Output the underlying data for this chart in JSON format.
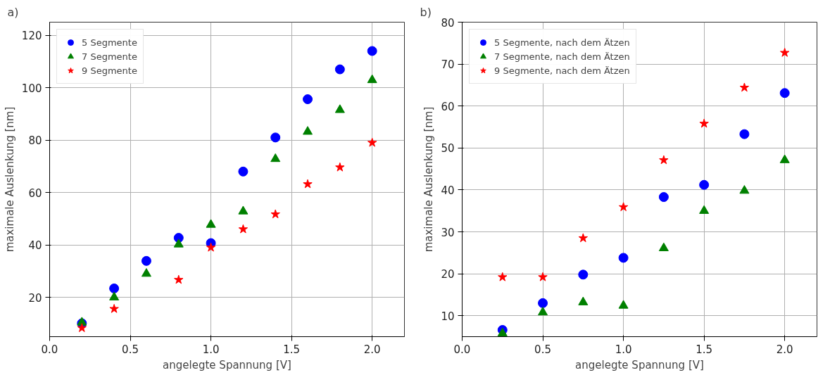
{
  "chart_data": [
    {
      "type": "scatter",
      "title": "a)",
      "xlabel": "angelegte Spannung [V]",
      "ylabel": "maximale Auslenkung [nm]",
      "xlim": [
        0,
        2.2
      ],
      "ylim": [
        5,
        125
      ],
      "xticks": [
        {
          "value": 0,
          "label": "0.0"
        },
        {
          "value": 0.5,
          "label": "0.5"
        },
        {
          "value": 1,
          "label": "1.0"
        },
        {
          "value": 1.5,
          "label": "1.5"
        },
        {
          "value": 2,
          "label": "2.0"
        }
      ],
      "yticks": [
        20,
        40,
        60,
        80,
        100,
        120
      ],
      "grid": true,
      "legend": "top left",
      "series": [
        {
          "name": "5 Segmente",
          "color": "#0000ff",
          "marker": "circle",
          "x": [
            0.2,
            0.4,
            0.6,
            0.8,
            1.0,
            1.2,
            1.4,
            1.6,
            1.8,
            2.0
          ],
          "values": [
            10.1,
            23.4,
            33.9,
            42.7,
            40.7,
            68,
            81,
            95.6,
            107,
            114
          ]
        },
        {
          "name": "7 Segmente",
          "color": "#008000",
          "marker": "triangle",
          "x": [
            0.2,
            0.4,
            0.6,
            0.8,
            1.0,
            1.2,
            1.4,
            1.6,
            1.8,
            2.0
          ],
          "values": [
            10.4,
            20,
            29,
            40.2,
            47.7,
            52.8,
            72.8,
            83.2,
            91.5,
            102.9
          ]
        },
        {
          "name": "9 Segmente",
          "color": "#ff0000",
          "marker": "star",
          "x": [
            0.2,
            0.4,
            0.8,
            1.0,
            1.2,
            1.4,
            1.6,
            1.8,
            2.0
          ],
          "values": [
            8.3,
            15.6,
            26.7,
            39,
            46,
            51.7,
            63.2,
            69.6,
            79
          ]
        }
      ]
    },
    {
      "type": "scatter",
      "title": "b)",
      "xlabel": "angelegte Spannung [V]",
      "ylabel": "maximale Auslenkung [nm]",
      "xlim": [
        0,
        2.2
      ],
      "ylim": [
        5,
        80
      ],
      "xticks": [
        {
          "value": 0,
          "label": "0.0"
        },
        {
          "value": 0.5,
          "label": "0.5"
        },
        {
          "value": 1,
          "label": "1.0"
        },
        {
          "value": 1.5,
          "label": "1.5"
        },
        {
          "value": 2,
          "label": "2.0"
        }
      ],
      "yticks": [
        10,
        20,
        30,
        40,
        50,
        60,
        70,
        80
      ],
      "grid": true,
      "legend": "top left",
      "series": [
        {
          "name": "5 Segmente, nach dem Ätzen",
          "color": "#0000ff",
          "marker": "circle",
          "x": [
            0.25,
            0.5,
            0.75,
            1.0,
            1.25,
            1.5,
            1.75,
            2.0
          ],
          "values": [
            6.6,
            13,
            19.8,
            23.8,
            38.3,
            41.2,
            53.3,
            63.1
          ]
        },
        {
          "name": "7 Segmente, nach dem Ätzen",
          "color": "#008000",
          "marker": "triangle",
          "x": [
            0.25,
            0.5,
            0.75,
            1.0,
            1.25,
            1.5,
            1.75,
            2.0
          ],
          "values": [
            5.8,
            10.8,
            13.2,
            12.4,
            26.1,
            35,
            39.8,
            47.1
          ]
        },
        {
          "name": "9 Segmente, nach dem Ätzen",
          "color": "#ff0000",
          "marker": "star",
          "x": [
            0.25,
            0.5,
            0.75,
            1.0,
            1.25,
            1.5,
            1.75,
            2.0
          ],
          "values": [
            19.2,
            19.2,
            28.5,
            35.9,
            47.1,
            55.8,
            64.4,
            72.7
          ]
        }
      ]
    }
  ]
}
